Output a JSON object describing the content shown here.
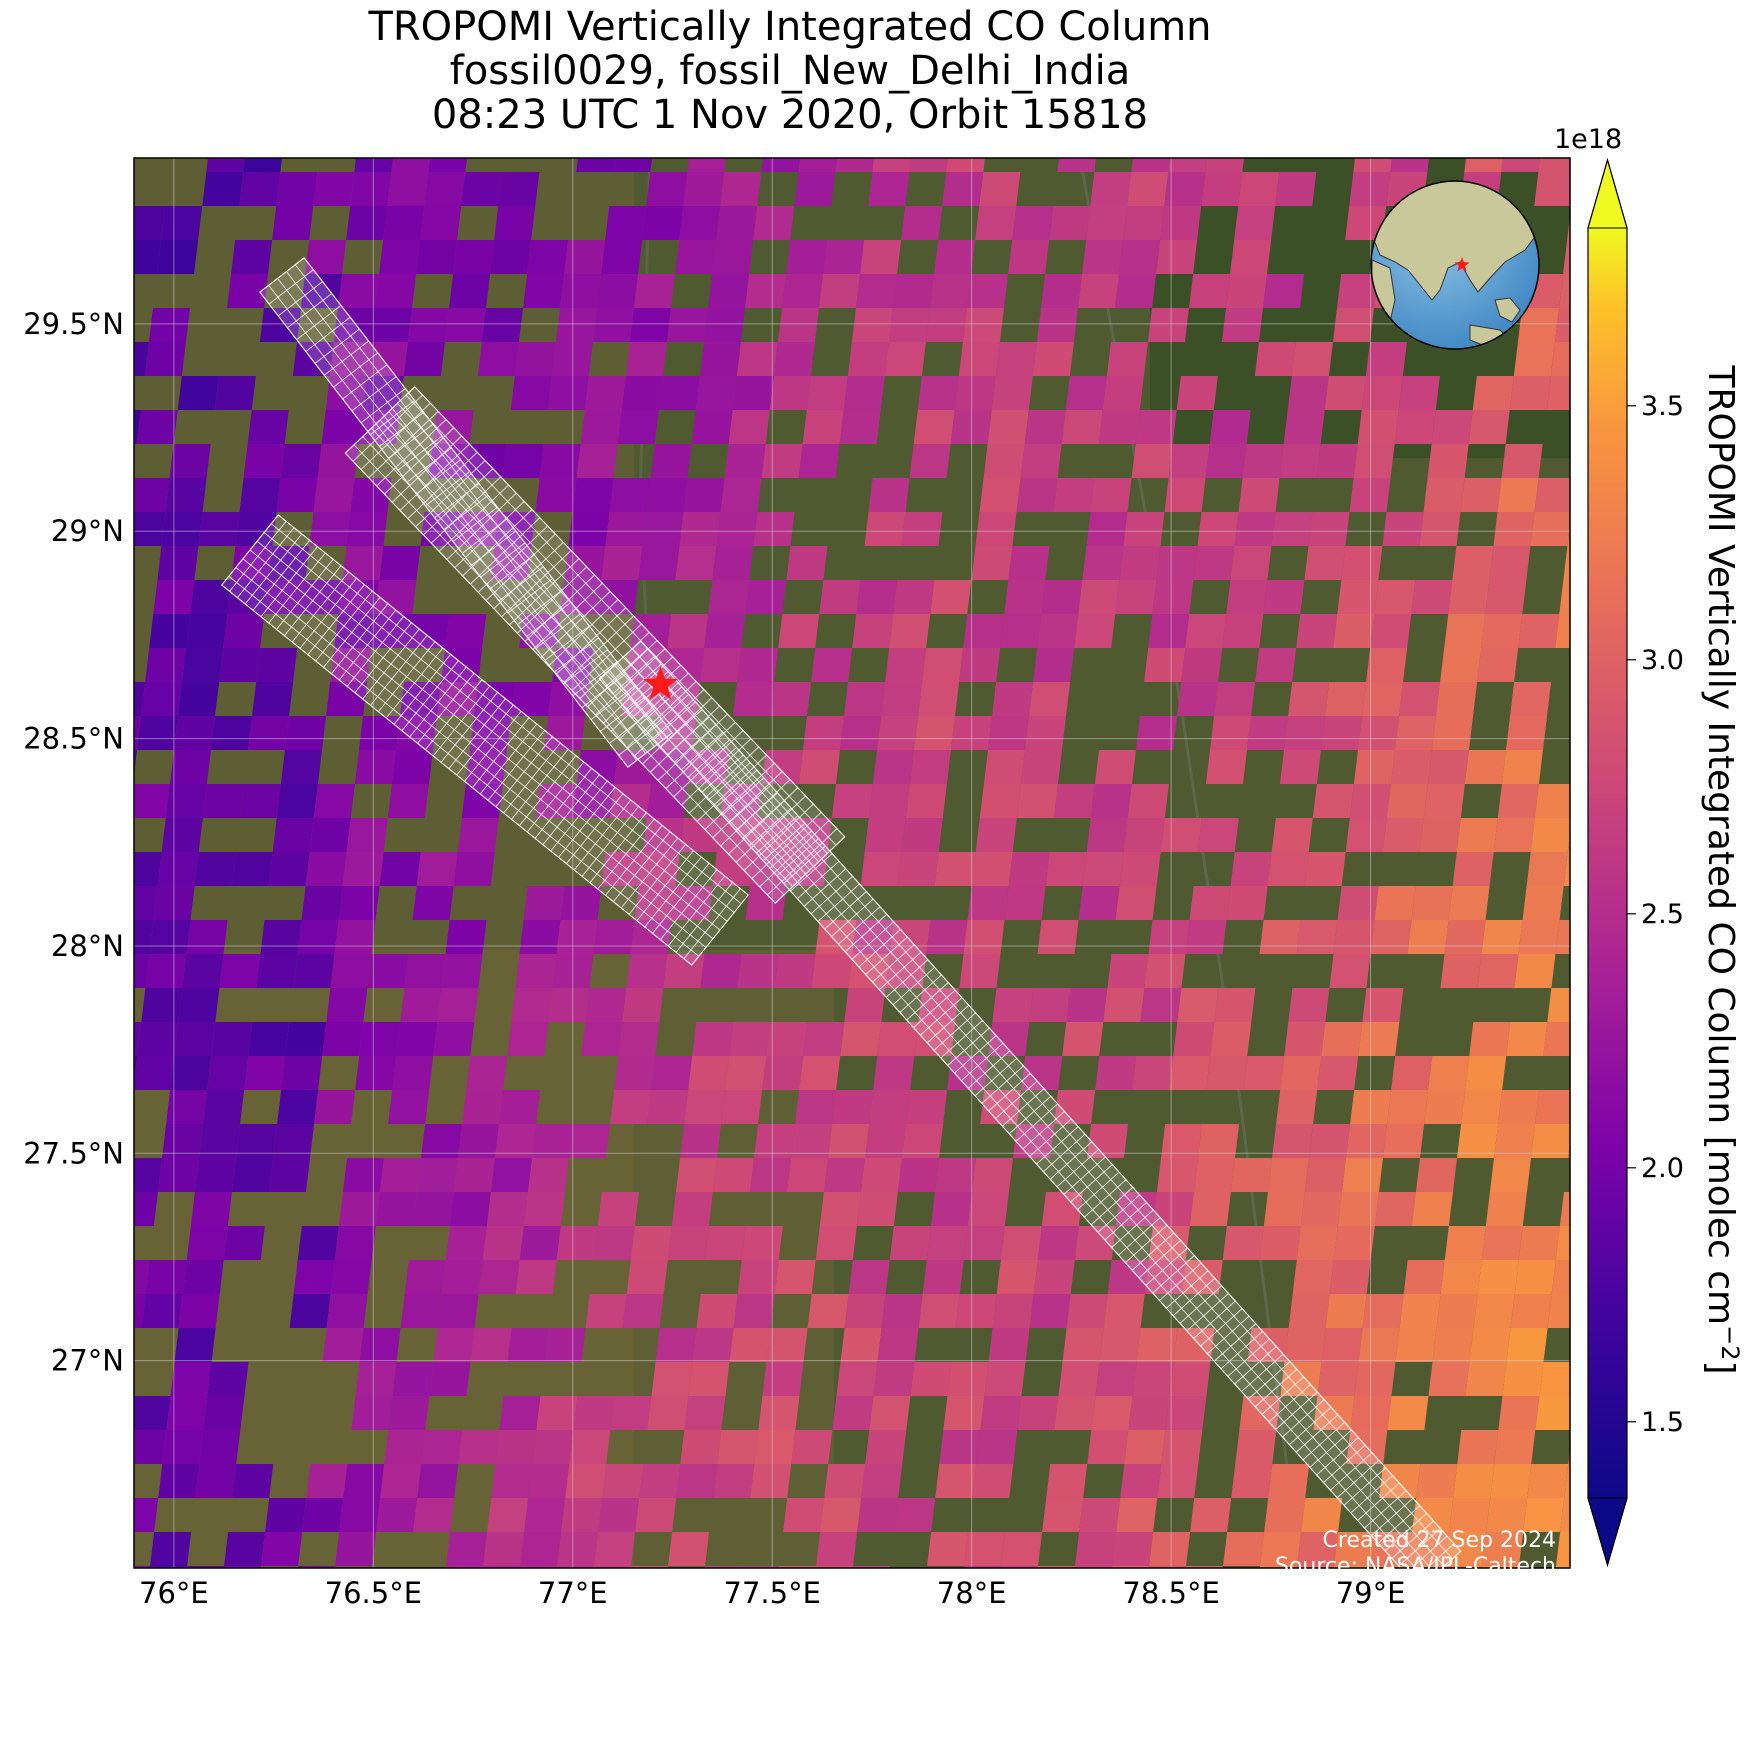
{
  "title": {
    "line1": "TROPOMI Vertically Integrated CO Column",
    "line2": "fossil0029, fossil_New_Delhi_India",
    "line3": "08:23 UTC 1 Nov 2020, Orbit 15818"
  },
  "map": {
    "lon_range": [
      75.9,
      79.5
    ],
    "lat_range": [
      26.5,
      29.9
    ],
    "lon_ticks": [
      76.0,
      76.5,
      77.0,
      77.5,
      78.0,
      78.5,
      79.0
    ],
    "lon_tick_labels": [
      "76°E",
      "76.5°E",
      "77°E",
      "77.5°E",
      "78°E",
      "78.5°E",
      "79°E"
    ],
    "lat_ticks": [
      29.5,
      29.0,
      28.5,
      28.0,
      27.5,
      27.0
    ],
    "lat_tick_labels": [
      "29.5°N",
      "29°N",
      "28.5°N",
      "28°N",
      "27.5°N",
      "27°N"
    ],
    "target": {
      "name": "fossil_New_Delhi_India",
      "lon": 77.22,
      "lat": 28.63,
      "marker": "red-star"
    },
    "basemap_color": "#4f5a30",
    "inset": "globe-inset-asia"
  },
  "colorbar": {
    "label": "TROPOMI Vertically Integrated CO Column [molec cm",
    "label_exp": "−2",
    "label_close": "]",
    "exponent": "1e18",
    "colormap": "plasma",
    "vmin": 1.35,
    "vmax": 3.85,
    "ticks": [
      1.5,
      2.0,
      2.5,
      3.0,
      3.5
    ],
    "tick_labels": [
      "1.5",
      "2.0",
      "2.5",
      "3.0",
      "3.5"
    ],
    "extend": "both"
  },
  "credits": {
    "line1": "Created 27 Sep 2024",
    "line2": "Source: NASA/JPL-Caltech"
  }
}
